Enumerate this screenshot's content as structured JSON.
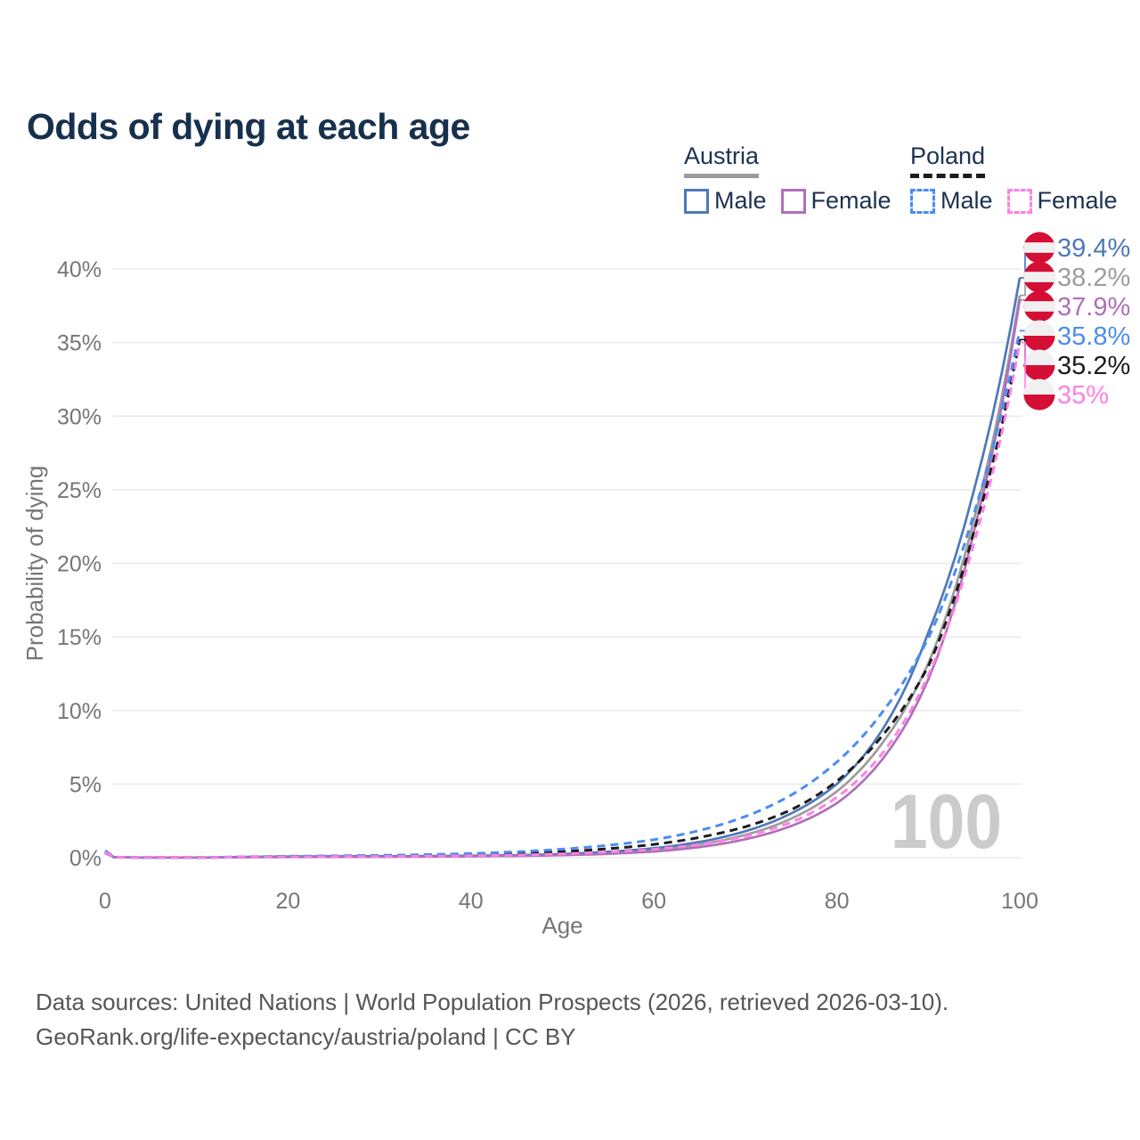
{
  "page": {
    "title": "Odds of dying at each age",
    "background": "#ffffff"
  },
  "legend": {
    "groups": [
      {
        "label": "Austria",
        "line_style": "solid",
        "line_color": "#9c9c9c",
        "items": [
          {
            "label": "Male",
            "color": "#4e79b7"
          },
          {
            "label": "Female",
            "color": "#b06fb9"
          }
        ]
      },
      {
        "label": "Poland",
        "line_style": "dashed",
        "line_color": "#1c1c1c",
        "items": [
          {
            "label": "Male",
            "color": "#4a8df0"
          },
          {
            "label": "Female",
            "color": "#ff80e5"
          }
        ]
      }
    ]
  },
  "chart_data": {
    "type": "line",
    "title": "Odds of dying at each age",
    "xlabel": "Age",
    "ylabel": "Probability of dying",
    "xlim": [
      0,
      100
    ],
    "ylim": [
      0,
      40
    ],
    "x_ticks": [
      0,
      20,
      40,
      60,
      80,
      100
    ],
    "y_ticks": [
      0,
      5,
      10,
      15,
      20,
      25,
      30,
      35,
      40
    ],
    "y_tick_suffix": "%",
    "grid": true,
    "legend_position": "top-right",
    "watermark": "100",
    "x": [
      0,
      1,
      5,
      10,
      15,
      20,
      25,
      30,
      35,
      40,
      45,
      50,
      55,
      60,
      65,
      70,
      75,
      80,
      85,
      90,
      95,
      100
    ],
    "series": [
      {
        "name": "Austria Male",
        "flag": "austria",
        "color": "#4e79b7",
        "dash": null,
        "end_label": "39.4%",
        "end_value": 39.4,
        "values": [
          0.36,
          0.03,
          0.01,
          0.01,
          0.05,
          0.08,
          0.09,
          0.1,
          0.11,
          0.13,
          0.17,
          0.25,
          0.4,
          0.64,
          1.07,
          1.8,
          3.0,
          5.0,
          8.7,
          15.3,
          25.0,
          39.4
        ]
      },
      {
        "name": "Austria Average",
        "flag": "austria",
        "color": "#9c9c9c",
        "dash": null,
        "end_label": "38.2%",
        "end_value": 38.2,
        "values": [
          0.33,
          0.03,
          0.01,
          0.01,
          0.04,
          0.06,
          0.07,
          0.08,
          0.09,
          0.11,
          0.14,
          0.21,
          0.33,
          0.53,
          0.9,
          1.55,
          2.65,
          4.5,
          7.8,
          13.2,
          23.0,
          38.2
        ]
      },
      {
        "name": "Austria Female",
        "flag": "austria",
        "color": "#b06fb9",
        "dash": null,
        "end_label": "37.9%",
        "end_value": 37.9,
        "values": [
          0.3,
          0.02,
          0.01,
          0.01,
          0.03,
          0.04,
          0.05,
          0.06,
          0.07,
          0.09,
          0.12,
          0.17,
          0.26,
          0.42,
          0.72,
          1.25,
          2.15,
          3.7,
          6.7,
          12.1,
          22.2,
          37.9
        ]
      },
      {
        "name": "Poland Male",
        "flag": "poland",
        "color": "#4a8df0",
        "dash": "9 6",
        "end_label": "35.8%",
        "end_value": 35.8,
        "values": [
          0.48,
          0.04,
          0.01,
          0.02,
          0.06,
          0.1,
          0.13,
          0.16,
          0.21,
          0.28,
          0.4,
          0.58,
          0.84,
          1.22,
          1.85,
          2.8,
          4.25,
          6.5,
          9.9,
          14.9,
          23.4,
          35.8
        ]
      },
      {
        "name": "Poland Average",
        "flag": "poland",
        "color": "#1c1c1c",
        "dash": "9 6",
        "end_label": "35.2%",
        "end_value": 35.2,
        "values": [
          0.42,
          0.03,
          0.01,
          0.01,
          0.05,
          0.08,
          0.1,
          0.12,
          0.15,
          0.2,
          0.28,
          0.41,
          0.61,
          0.9,
          1.38,
          2.1,
          3.25,
          5.2,
          8.3,
          13.0,
          22.2,
          35.2
        ]
      },
      {
        "name": "Poland Female",
        "flag": "poland",
        "color": "#ff80e5",
        "dash": "9 6",
        "end_label": "35%",
        "end_value": 35.0,
        "values": [
          0.38,
          0.03,
          0.01,
          0.01,
          0.04,
          0.05,
          0.07,
          0.08,
          0.1,
          0.13,
          0.18,
          0.26,
          0.38,
          0.56,
          0.9,
          1.45,
          2.4,
          4.1,
          7.1,
          12.4,
          21.4,
          35.0
        ]
      }
    ],
    "flag_colors": {
      "red": "#d40e35",
      "white": "#f0f0f0"
    },
    "axis_color": "#767676",
    "grid_color": "#eaeaea",
    "watermark_color": "#cbcbcb"
  },
  "footer": {
    "line1": "Data sources: United Nations | World Population Prospects (2026, retrieved 2026-03-10).",
    "line2": "GeoRank.org/life-expectancy/austria/poland | CC BY"
  }
}
